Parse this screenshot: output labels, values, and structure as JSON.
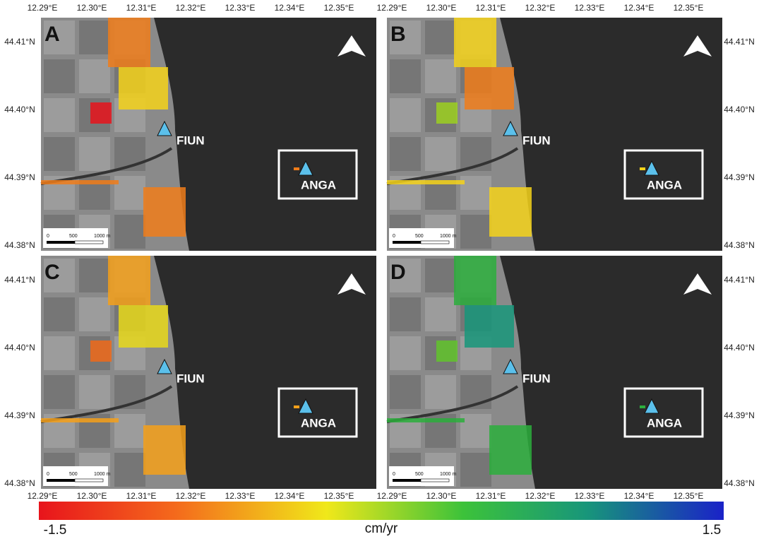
{
  "axes": {
    "lon_labels": [
      "12.29°E",
      "12.30°E",
      "12.31°E",
      "12.32°E",
      "12.33°E",
      "12.34°E",
      "12.35°E"
    ],
    "lat_labels": [
      "44.41°N",
      "44.40°N",
      "44.39°N",
      "44.38°N"
    ]
  },
  "panels": [
    {
      "label": "A",
      "stations": [
        "FIUN",
        "ANGA"
      ],
      "scale": [
        "0",
        "500",
        "1000 m"
      ]
    },
    {
      "label": "B",
      "stations": [
        "FIUN",
        "ANGA"
      ],
      "scale": [
        "0",
        "500",
        "1000 m"
      ]
    },
    {
      "label": "C",
      "stations": [
        "FIUN",
        "ANGA"
      ],
      "scale": [
        "0",
        "500",
        "1000 m"
      ]
    },
    {
      "label": "D",
      "stations": [
        "FIUN",
        "ANGA"
      ],
      "scale": [
        "0",
        "500",
        "1000 m"
      ]
    }
  ],
  "colorbar": {
    "min_label": "-1.5",
    "unit": "cm/yr",
    "max_label": "1.5"
  }
}
